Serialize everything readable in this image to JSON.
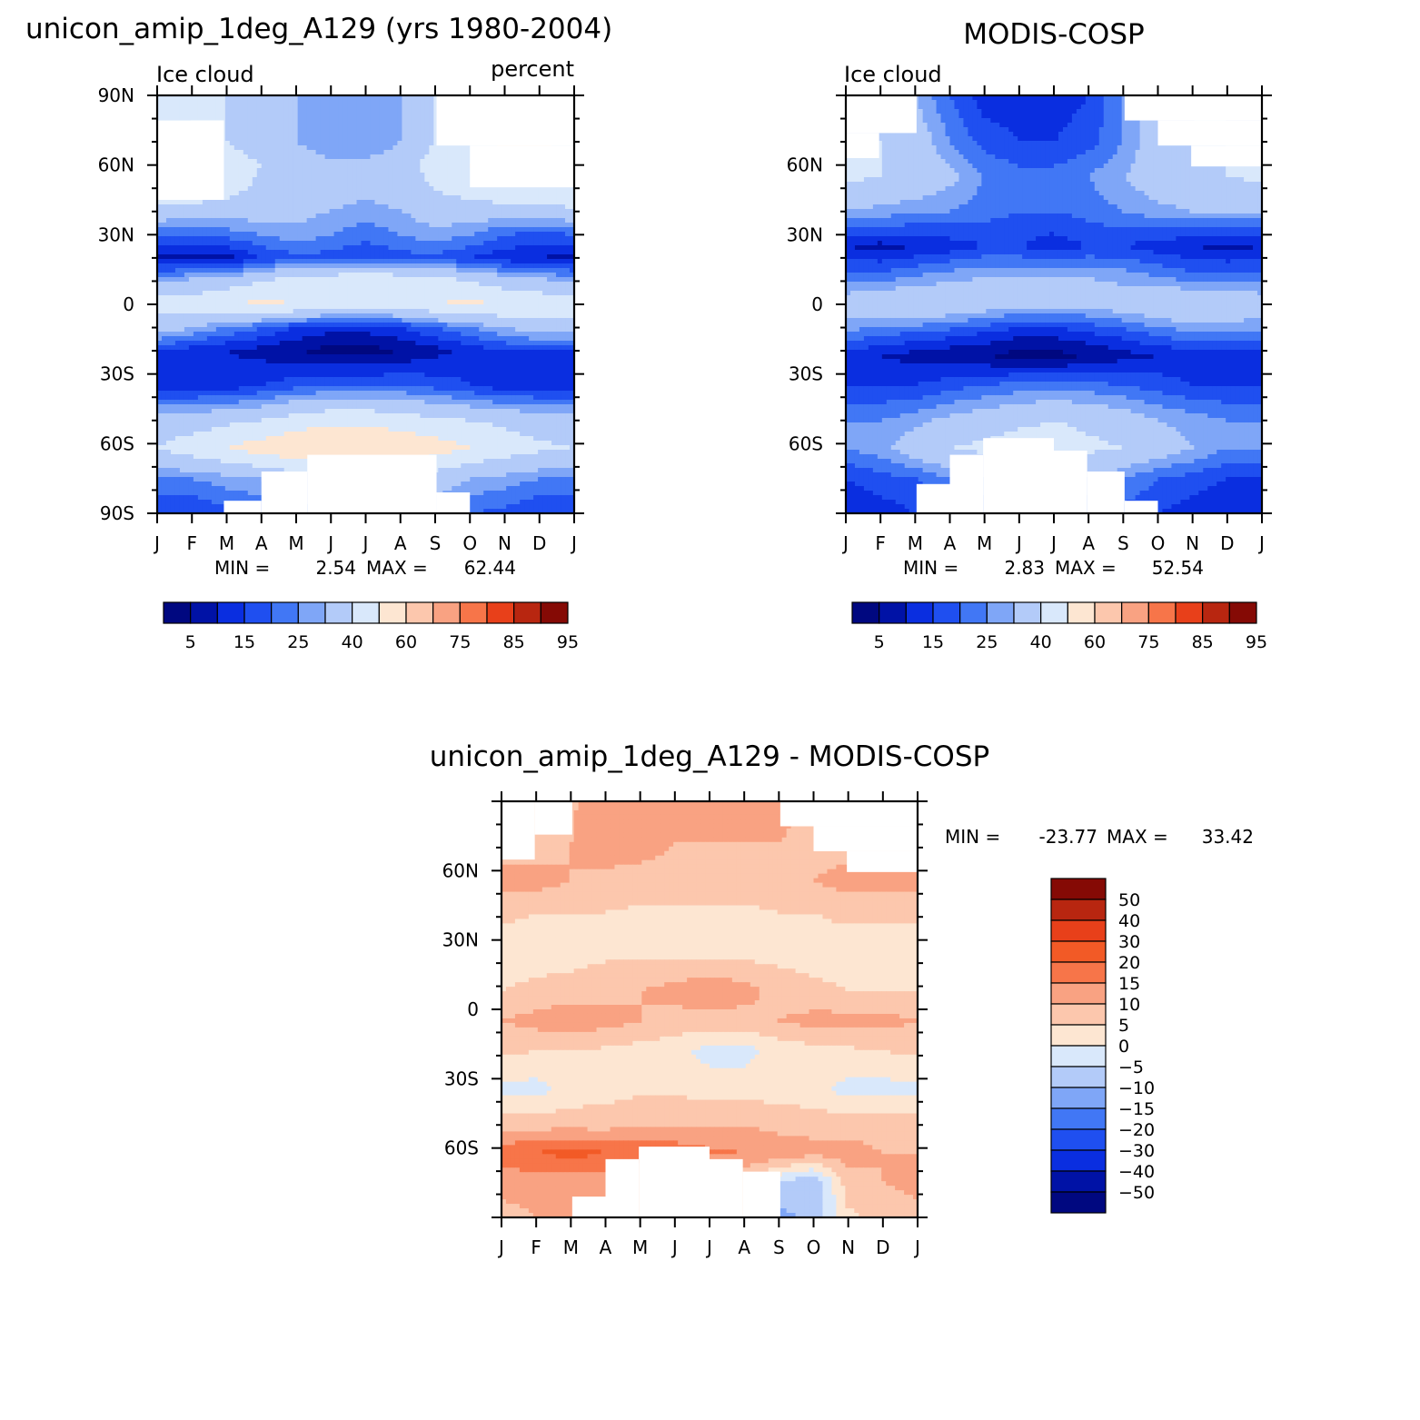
{
  "figure": {
    "top_left_title": "unicon_amip_1deg_A129 (yrs 1980-2004)",
    "top_right_title": "MODIS-COSP",
    "bottom_title": "unicon_amip_1deg_A129 - MODIS-COSP"
  },
  "chart_data": [
    {
      "type": "heatmap",
      "title": "unicon_amip_1deg_A129 (yrs 1980-2004)",
      "left_label": "Ice cloud",
      "right_label": "percent",
      "x_ticks": [
        "J",
        "F",
        "M",
        "A",
        "M",
        "J",
        "J",
        "A",
        "S",
        "O",
        "N",
        "D",
        "J"
      ],
      "y_ticks": [
        "90N",
        "60N",
        "30N",
        "0",
        "30S",
        "60S",
        "90S"
      ],
      "ylim": [
        -90,
        90
      ],
      "stats": {
        "min_label": "MIN =",
        "min": "2.54",
        "max_label": "MAX =",
        "max": "62.44"
      },
      "colorbar": {
        "labels": [
          "5",
          "15",
          "25",
          "40",
          "60",
          "75",
          "85",
          "95"
        ],
        "colors": [
          "#000880",
          "#0012a6",
          "#0a2ee0",
          "#1f4ff0",
          "#4177f5",
          "#7fa6f7",
          "#b3cbf9",
          "#d9e8fb",
          "#fde6d2",
          "#fcc7ad",
          "#f9a282",
          "#f77549",
          "#e8401a",
          "#b82610",
          "#850a05"
        ]
      },
      "bands": [
        {
          "lat": 90,
          "values": [
            40,
            40,
            40,
            35,
            30,
            25,
            25,
            30,
            40,
            50,
            55,
            50,
            40
          ]
        },
        {
          "lat": 70,
          "values": [
            45,
            45,
            40,
            35,
            30,
            25,
            25,
            30,
            40,
            45,
            50,
            50,
            45
          ]
        },
        {
          "lat": 60,
          "values": [
            55,
            50,
            45,
            40,
            35,
            32,
            32,
            35,
            45,
            50,
            55,
            55,
            55
          ]
        },
        {
          "lat": 45,
          "values": [
            45,
            42,
            40,
            38,
            35,
            32,
            30,
            32,
            38,
            40,
            42,
            45,
            45
          ]
        },
        {
          "lat": 30,
          "values": [
            20,
            20,
            22,
            25,
            28,
            25,
            22,
            25,
            28,
            25,
            20,
            18,
            20
          ]
        },
        {
          "lat": 20,
          "values": [
            8,
            7,
            8,
            15,
            18,
            18,
            15,
            18,
            18,
            15,
            12,
            10,
            8
          ]
        },
        {
          "lat": 10,
          "values": [
            30,
            32,
            35,
            40,
            45,
            48,
            50,
            48,
            45,
            40,
            35,
            32,
            30
          ]
        },
        {
          "lat": 0,
          "values": [
            45,
            45,
            50,
            52,
            50,
            45,
            45,
            45,
            50,
            52,
            50,
            48,
            45
          ]
        },
        {
          "lat": -10,
          "values": [
            35,
            30,
            25,
            20,
            15,
            12,
            12,
            15,
            20,
            25,
            30,
            35,
            35
          ]
        },
        {
          "lat": -20,
          "values": [
            15,
            12,
            10,
            8,
            5,
            3,
            3,
            5,
            8,
            12,
            15,
            15,
            15
          ]
        },
        {
          "lat": -35,
          "values": [
            12,
            12,
            12,
            15,
            18,
            20,
            20,
            20,
            18,
            15,
            12,
            12,
            12
          ]
        },
        {
          "lat": -50,
          "values": [
            35,
            35,
            38,
            40,
            45,
            48,
            48,
            45,
            42,
            40,
            38,
            35,
            35
          ]
        },
        {
          "lat": -62,
          "values": [
            40,
            45,
            50,
            55,
            58,
            60,
            60,
            58,
            55,
            50,
            45,
            42,
            40
          ]
        },
        {
          "lat": -75,
          "values": [
            25,
            25,
            28,
            30,
            35,
            40,
            40,
            38,
            35,
            30,
            28,
            25,
            25
          ]
        },
        {
          "lat": -90,
          "values": [
            15,
            15,
            18,
            20,
            25,
            30,
            30,
            28,
            25,
            20,
            18,
            15,
            15
          ]
        }
      ],
      "mask": [
        [
          0,
          0.16,
          0.06,
          0.25
        ],
        [
          0.08,
          0.16,
          0.06,
          0.12
        ],
        [
          0.67,
          1.0,
          0.0,
          0.12
        ],
        [
          0.75,
          1.0,
          0.12,
          0.22
        ],
        [
          0.25,
          0.36,
          0.9,
          1.0
        ],
        [
          0.16,
          0.25,
          0.97,
          1.0
        ],
        [
          0.36,
          0.67,
          0.86,
          1.0
        ],
        [
          0.67,
          0.75,
          0.95,
          1.0
        ]
      ]
    },
    {
      "type": "heatmap",
      "title": "MODIS-COSP",
      "left_label": "Ice cloud",
      "x_ticks": [
        "J",
        "F",
        "M",
        "A",
        "M",
        "J",
        "J",
        "A",
        "S",
        "O",
        "N",
        "D",
        "J"
      ],
      "y_ticks": [
        "60N",
        "30N",
        "0",
        "30S",
        "60S"
      ],
      "ylim": [
        -90,
        90
      ],
      "stats": {
        "min_label": "MIN =",
        "min": "2.83",
        "max_label": "MAX =",
        "max": "52.54"
      },
      "colorbar": {
        "labels": [
          "5",
          "15",
          "25",
          "40",
          "60",
          "75",
          "85",
          "95"
        ],
        "colors": [
          "#000880",
          "#0012a6",
          "#0a2ee0",
          "#1f4ff0",
          "#4177f5",
          "#7fa6f7",
          "#b3cbf9",
          "#d9e8fb",
          "#fde6d2",
          "#fcc7ad",
          "#f9a282",
          "#f77549",
          "#e8401a",
          "#b82610",
          "#850a05"
        ]
      },
      "bands": [
        {
          "lat": 90,
          "values": [
            35,
            35,
            30,
            20,
            12,
            12,
            12,
            15,
            25,
            35,
            40,
            40,
            35
          ]
        },
        {
          "lat": 70,
          "values": [
            40,
            40,
            35,
            25,
            18,
            15,
            15,
            18,
            25,
            35,
            40,
            40,
            40
          ]
        },
        {
          "lat": 55,
          "values": [
            42,
            40,
            38,
            32,
            25,
            22,
            22,
            25,
            30,
            35,
            38,
            40,
            42
          ]
        },
        {
          "lat": 40,
          "values": [
            30,
            28,
            26,
            25,
            22,
            20,
            20,
            22,
            25,
            28,
            30,
            30,
            30
          ]
        },
        {
          "lat": 25,
          "values": [
            10,
            8,
            10,
            12,
            15,
            15,
            12,
            15,
            15,
            12,
            10,
            8,
            10
          ]
        },
        {
          "lat": 12,
          "values": [
            22,
            22,
            25,
            28,
            30,
            30,
            30,
            30,
            28,
            25,
            22,
            22,
            22
          ]
        },
        {
          "lat": 0,
          "values": [
            35,
            38,
            40,
            38,
            35,
            32,
            32,
            32,
            35,
            38,
            40,
            38,
            35
          ]
        },
        {
          "lat": -12,
          "values": [
            25,
            22,
            20,
            18,
            15,
            12,
            12,
            15,
            18,
            22,
            25,
            25,
            25
          ]
        },
        {
          "lat": -22,
          "values": [
            12,
            10,
            8,
            6,
            5,
            3,
            3,
            5,
            8,
            10,
            12,
            12,
            12
          ]
        },
        {
          "lat": -35,
          "values": [
            15,
            15,
            15,
            18,
            20,
            22,
            22,
            22,
            20,
            18,
            15,
            15,
            15
          ]
        },
        {
          "lat": -50,
          "values": [
            25,
            25,
            28,
            32,
            35,
            38,
            40,
            38,
            35,
            30,
            28,
            25,
            25
          ]
        },
        {
          "lat": -62,
          "values": [
            25,
            28,
            35,
            40,
            42,
            45,
            45,
            42,
            40,
            35,
            30,
            25,
            25
          ]
        },
        {
          "lat": -75,
          "values": [
            15,
            18,
            20,
            25,
            30,
            35,
            35,
            30,
            25,
            20,
            18,
            15,
            15
          ]
        },
        {
          "lat": -90,
          "values": [
            10,
            12,
            15,
            18,
            20,
            25,
            25,
            20,
            18,
            15,
            12,
            10,
            10
          ]
        }
      ],
      "mask": [
        [
          0,
          0.17,
          0.0,
          0.09
        ],
        [
          0,
          0.08,
          0.09,
          0.15
        ],
        [
          0.67,
          1.0,
          0.0,
          0.06
        ],
        [
          0.75,
          1.0,
          0.06,
          0.12
        ],
        [
          0.83,
          1.0,
          0.12,
          0.17
        ],
        [
          0.17,
          1.0,
          0.0,
          0.0
        ],
        [
          0.17,
          0.25,
          0.93,
          1.0
        ],
        [
          0.25,
          0.33,
          0.86,
          1.0
        ],
        [
          0.33,
          0.5,
          0.82,
          1.0
        ],
        [
          0.5,
          0.58,
          0.85,
          1.0
        ],
        [
          0.58,
          0.67,
          0.9,
          1.0
        ],
        [
          0.67,
          0.75,
          0.97,
          1.0
        ]
      ]
    },
    {
      "type": "heatmap",
      "title": "unicon_amip_1deg_A129 - MODIS-COSP",
      "x_ticks": [
        "J",
        "F",
        "M",
        "A",
        "M",
        "J",
        "J",
        "A",
        "S",
        "O",
        "N",
        "D",
        "J"
      ],
      "y_ticks": [
        "60N",
        "30N",
        "0",
        "30S",
        "60S"
      ],
      "ylim": [
        -90,
        90
      ],
      "stats": {
        "min_label": "MIN =",
        "min": "-23.77",
        "max_label": "MAX =",
        "max": "33.42"
      },
      "colorbar": {
        "labels": [
          "50",
          "40",
          "30",
          "20",
          "15",
          "10",
          "5",
          "0",
          "-5",
          "-10",
          "-15",
          "-20",
          "-30",
          "-40",
          "-50"
        ],
        "colors": [
          "#850a05",
          "#b82610",
          "#e8401a",
          "#f25a26",
          "#f77549",
          "#f9a282",
          "#fcc7ad",
          "#fde6d2",
          "#d9e8fb",
          "#b3cbf9",
          "#7fa6f7",
          "#4177f5",
          "#1f4ff0",
          "#0a2ee0",
          "#0012a6",
          "#000880"
        ]
      },
      "bands": [
        {
          "lat": 90,
          "values": [
            5,
            6,
            9,
            15,
            12,
            10,
            10,
            12,
            12,
            8,
            6,
            6,
            5
          ]
        },
        {
          "lat": 72,
          "values": [
            8,
            8,
            10,
            12,
            12,
            10,
            10,
            10,
            10,
            8,
            8,
            8,
            8
          ]
        },
        {
          "lat": 55,
          "values": [
            12,
            12,
            10,
            9,
            8,
            8,
            8,
            8,
            9,
            10,
            12,
            12,
            12
          ]
        },
        {
          "lat": 42,
          "values": [
            6,
            5,
            5,
            5,
            4,
            4,
            4,
            4,
            5,
            5,
            6,
            6,
            6
          ]
        },
        {
          "lat": 25,
          "values": [
            3,
            3,
            3,
            4,
            4,
            3,
            3,
            3,
            3,
            3,
            3,
            3,
            3
          ]
        },
        {
          "lat": 8,
          "values": [
            5,
            6,
            7,
            8,
            10,
            12,
            14,
            12,
            8,
            6,
            5,
            5,
            5
          ]
        },
        {
          "lat": -5,
          "values": [
            10,
            12,
            14,
            12,
            10,
            8,
            8,
            8,
            10,
            12,
            12,
            12,
            10
          ]
        },
        {
          "lat": -18,
          "values": [
            6,
            5,
            5,
            4,
            3,
            2,
            -2,
            -2,
            2,
            3,
            4,
            5,
            6
          ]
        },
        {
          "lat": -35,
          "values": [
            -2,
            -2,
            2,
            3,
            4,
            4,
            3,
            3,
            3,
            2,
            -2,
            -2,
            -2
          ]
        },
        {
          "lat": -50,
          "values": [
            8,
            8,
            8,
            8,
            10,
            10,
            10,
            10,
            8,
            8,
            8,
            8,
            8
          ]
        },
        {
          "lat": -62,
          "values": [
            18,
            20,
            22,
            20,
            18,
            18,
            16,
            15,
            14,
            12,
            12,
            10,
            10
          ]
        },
        {
          "lat": -75,
          "values": [
            12,
            12,
            12,
            12,
            10,
            10,
            8,
            6,
            -5,
            -10,
            8,
            10,
            12
          ]
        },
        {
          "lat": -90,
          "values": [
            8,
            10,
            14,
            12,
            10,
            8,
            8,
            6,
            -12,
            -8,
            4,
            6,
            8
          ]
        }
      ],
      "mask": [
        [
          0,
          0.08,
          0.0,
          0.14
        ],
        [
          0.08,
          0.17,
          0.0,
          0.08
        ],
        [
          0.67,
          1.0,
          0.0,
          0.06
        ],
        [
          0.75,
          1.0,
          0.06,
          0.12
        ],
        [
          0.83,
          1.0,
          0.12,
          0.17
        ],
        [
          0.17,
          0.25,
          0.95,
          1.0
        ],
        [
          0.25,
          0.33,
          0.86,
          1.0
        ],
        [
          0.33,
          0.5,
          0.83,
          1.0
        ],
        [
          0.5,
          0.58,
          0.86,
          1.0
        ],
        [
          0.58,
          0.67,
          0.89,
          1.0
        ]
      ]
    }
  ]
}
